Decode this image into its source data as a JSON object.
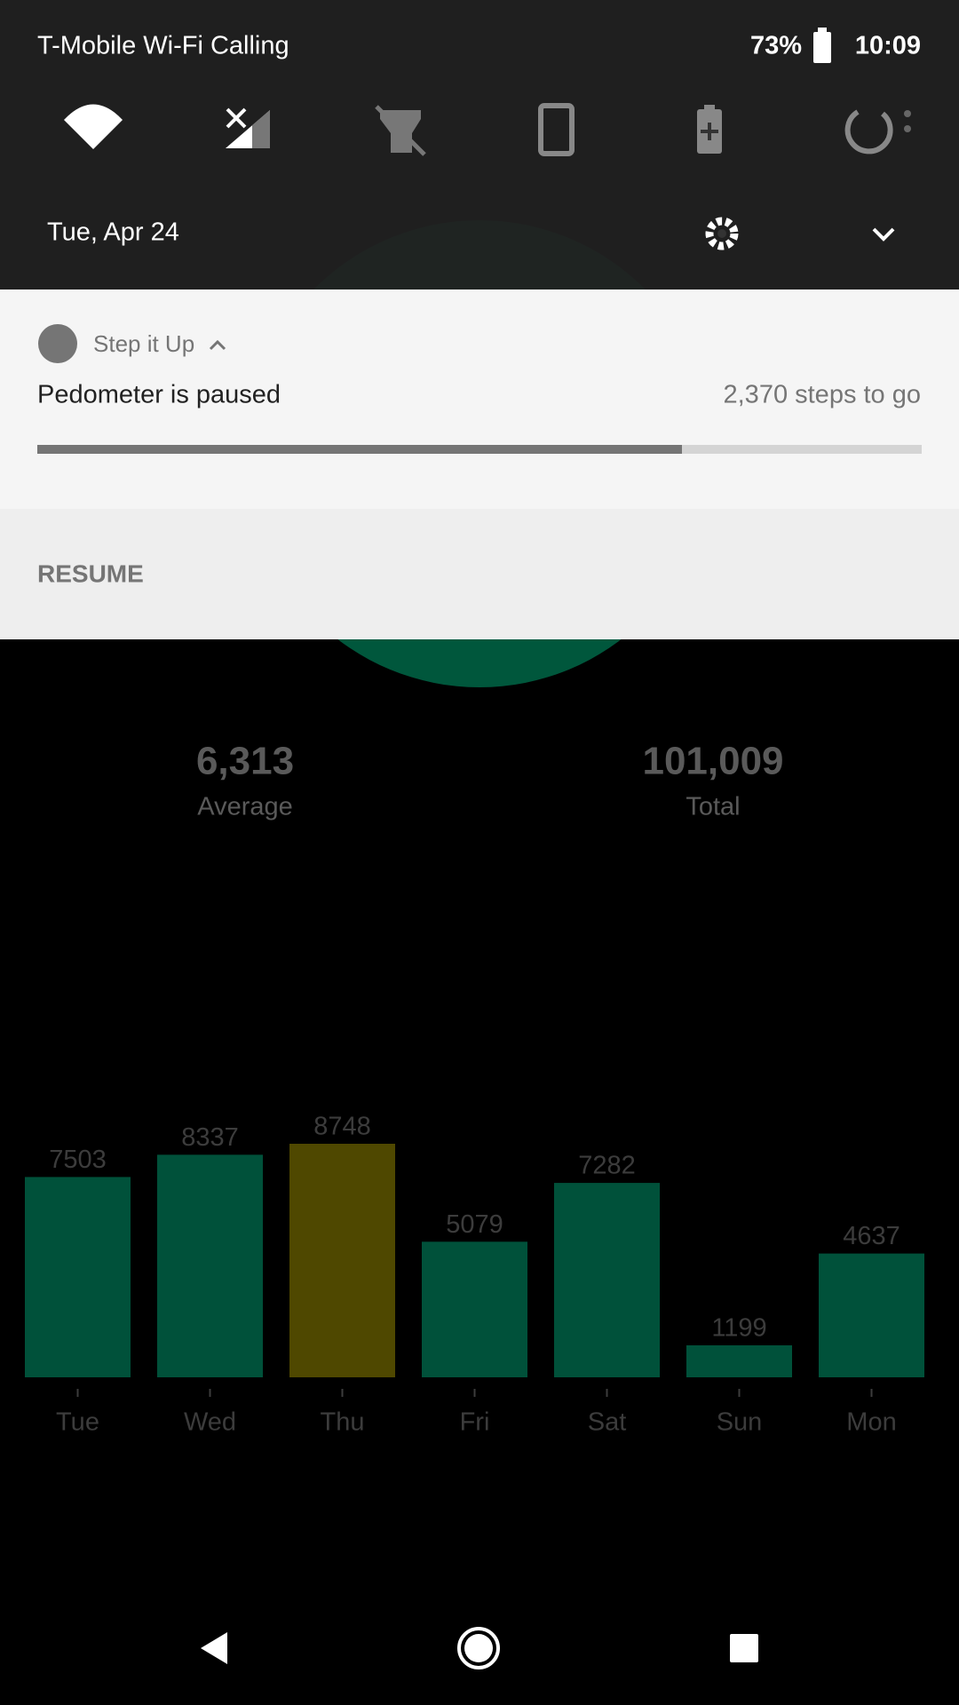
{
  "status_bar": {
    "carrier": "T-Mobile Wi-Fi Calling",
    "battery": "73%",
    "time": "10:09"
  },
  "quick_settings": {
    "date": "Tue, Apr 24"
  },
  "notification": {
    "app_name": "Step it Up",
    "title": "Pedometer is paused",
    "detail": "2,370 steps to go",
    "action": "RESUME"
  },
  "stats": [
    {
      "value": "6,313",
      "label": "Average"
    },
    {
      "value": "101,009",
      "label": "Total"
    }
  ],
  "chart": {
    "type": "bar",
    "categories": [
      "Tue",
      "Wed",
      "Thu",
      "Fri",
      "Sat",
      "Sun",
      "Mon"
    ],
    "values": [
      7503,
      8337,
      8748,
      5079,
      7282,
      1199,
      4637
    ],
    "colors": [
      "#00513a",
      "#00513a",
      "#4f4800",
      "#00513a",
      "#00513a",
      "#00513a",
      "#00513a"
    ]
  }
}
